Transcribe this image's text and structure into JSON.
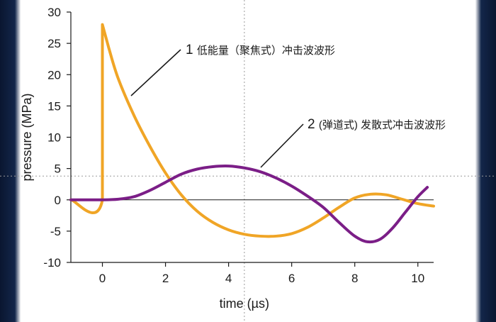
{
  "chart_data": {
    "type": "line",
    "xlabel": "time (µs)",
    "ylabel": "pressure (MPa)",
    "xlim": [
      -1,
      10.5
    ],
    "ylim": [
      -10,
      30
    ],
    "x_ticks": [
      0,
      2,
      4,
      6,
      8,
      10
    ],
    "y_ticks": [
      30,
      25,
      20,
      15,
      10,
      5,
      0,
      -5,
      -10
    ],
    "reference_lines": {
      "x": 4.5,
      "y": 3.8
    },
    "series": [
      {
        "name": "低能量（聚焦式）冲击波波形",
        "color": "#f0a526",
        "points": [
          [
            -1,
            0
          ],
          [
            0,
            0
          ],
          [
            0,
            28
          ],
          [
            0.2,
            24.3
          ],
          [
            0.5,
            19.4
          ],
          [
            1.0,
            13.5
          ],
          [
            1.5,
            8.6
          ],
          [
            2.0,
            4.3
          ],
          [
            2.5,
            0.8
          ],
          [
            3.0,
            -1.8
          ],
          [
            3.5,
            -3.6
          ],
          [
            4.0,
            -4.8
          ],
          [
            4.5,
            -5.5
          ],
          [
            5.0,
            -5.8
          ],
          [
            5.5,
            -5.8
          ],
          [
            6.0,
            -5.4
          ],
          [
            6.5,
            -4.4
          ],
          [
            7.0,
            -2.9
          ],
          [
            7.5,
            -1.2
          ],
          [
            8.0,
            0.3
          ],
          [
            8.5,
            0.9
          ],
          [
            9.0,
            0.8
          ],
          [
            9.5,
            0.1
          ],
          [
            10.0,
            -0.6
          ],
          [
            10.5,
            -1.0
          ]
        ]
      },
      {
        "name": "(弹道式) 发散式冲击波波形",
        "color": "#7b1e87",
        "points": [
          [
            -1,
            0
          ],
          [
            0,
            0
          ],
          [
            0.5,
            0.1
          ],
          [
            1.0,
            0.5
          ],
          [
            1.5,
            1.5
          ],
          [
            2.0,
            2.8
          ],
          [
            2.5,
            4.1
          ],
          [
            3.0,
            4.9
          ],
          [
            3.5,
            5.3
          ],
          [
            4.0,
            5.4
          ],
          [
            4.5,
            5.1
          ],
          [
            5.0,
            4.5
          ],
          [
            5.5,
            3.5
          ],
          [
            6.0,
            2.2
          ],
          [
            6.5,
            0.6
          ],
          [
            7.0,
            -1.2
          ],
          [
            7.5,
            -3.6
          ],
          [
            8.0,
            -5.8
          ],
          [
            8.4,
            -6.7
          ],
          [
            8.8,
            -6.3
          ],
          [
            9.2,
            -4.5
          ],
          [
            9.6,
            -2.0
          ],
          [
            10.0,
            0.5
          ],
          [
            10.3,
            2.0
          ]
        ]
      }
    ],
    "annotations": [
      {
        "number": "1",
        "text": "低能量（聚焦式）冲击波波形",
        "series_index": 0,
        "point_x": 1.0
      },
      {
        "number": "2",
        "text": "(弹道式) 发散式冲击波波形",
        "series_index": 1,
        "point_x": 5.2
      }
    ]
  }
}
